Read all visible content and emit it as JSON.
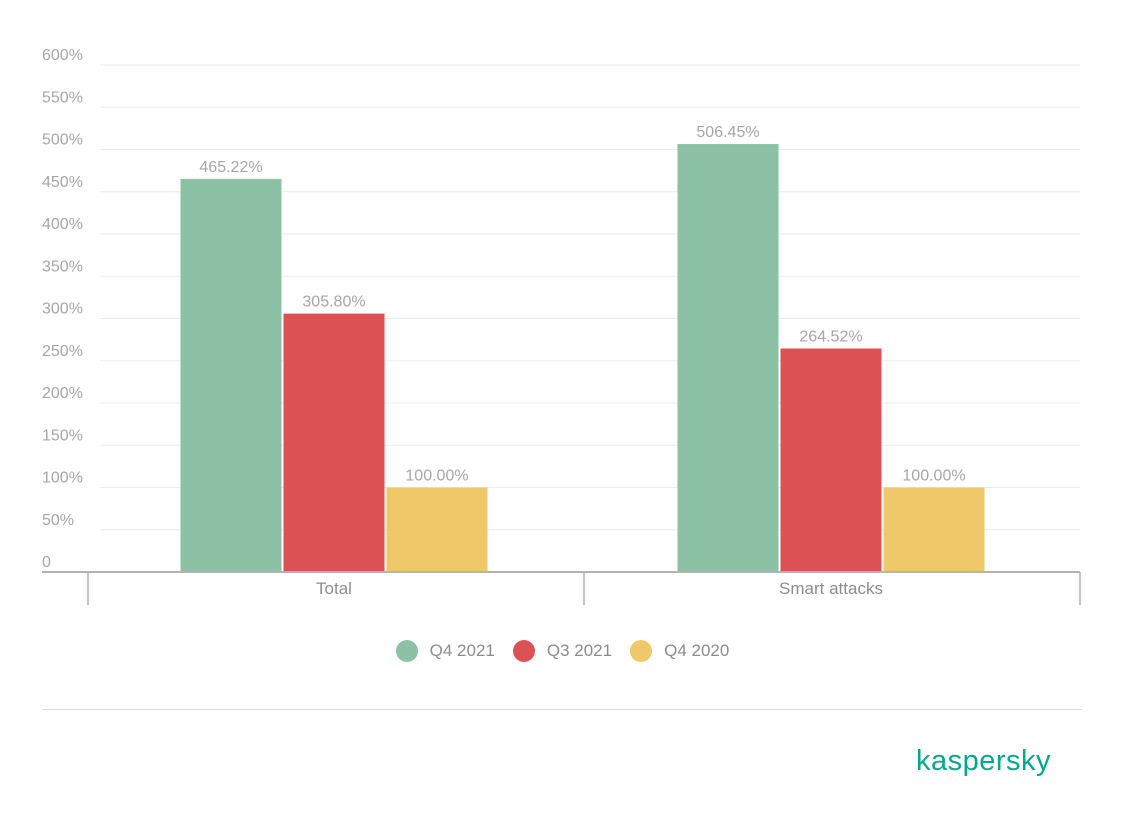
{
  "chart_data": {
    "type": "bar",
    "categories": [
      "Total",
      "Smart attacks"
    ],
    "series": [
      {
        "name": "Q4 2021",
        "color": "#8dc1a5",
        "values": [
          465.22,
          506.45
        ],
        "labels": [
          "465.22%",
          "506.45%"
        ]
      },
      {
        "name": "Q3 2021",
        "color": "#dc5254",
        "values": [
          305.8,
          264.52
        ],
        "labels": [
          "305.80%",
          "264.52%"
        ]
      },
      {
        "name": "Q4 2020",
        "color": "#efc969",
        "values": [
          100.0,
          100.0
        ],
        "labels": [
          "100.00%",
          "100.00%"
        ]
      }
    ],
    "yticks": [
      {
        "value": 0,
        "label": "0"
      },
      {
        "value": 50,
        "label": "50%"
      },
      {
        "value": 100,
        "label": "100%"
      },
      {
        "value": 150,
        "label": "150%"
      },
      {
        "value": 200,
        "label": "200%"
      },
      {
        "value": 250,
        "label": "250%"
      },
      {
        "value": 300,
        "label": "300%"
      },
      {
        "value": 350,
        "label": "350%"
      },
      {
        "value": 400,
        "label": "400%"
      },
      {
        "value": 450,
        "label": "450%"
      },
      {
        "value": 500,
        "label": "500%"
      },
      {
        "value": 550,
        "label": "550%"
      },
      {
        "value": 600,
        "label": "600%"
      }
    ],
    "ylim": [
      0,
      600
    ],
    "grid": true,
    "legend_position": "bottom"
  },
  "legend": [
    {
      "label": "Q4 2021",
      "color": "#8dc1a5"
    },
    {
      "label": "Q3 2021",
      "color": "#dc5254"
    },
    {
      "label": "Q4 2020",
      "color": "#efc969"
    }
  ],
  "brand": {
    "logo_text": "kaspersky",
    "color": "#00a88e"
  }
}
